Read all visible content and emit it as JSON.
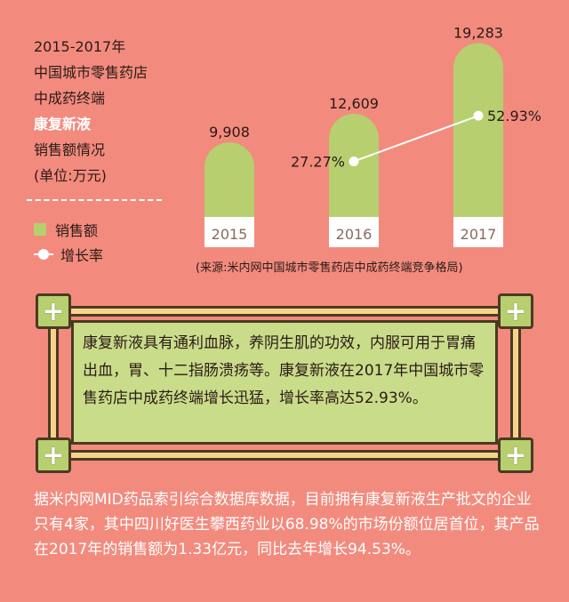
{
  "title_lines": [
    "2015-2017年",
    "中国城市零售药店",
    "中成药终端",
    "康复新液",
    "销售额情况",
    "(单位:万元)"
  ],
  "legend": {
    "sales": "销售额",
    "growth": "增长率"
  },
  "source": "(来源:米内网中国城市零售药店中成药终端竞争格局)",
  "colors": {
    "background": "#f28b7e",
    "bar": "#b7cf6e",
    "line": "#ffffff"
  },
  "chart_data": {
    "type": "bar",
    "categories": [
      "2015",
      "2016",
      "2017"
    ],
    "series": [
      {
        "name": "销售额",
        "values": [
          9908,
          12609,
          19283
        ],
        "labels": [
          "9,908",
          "12,609",
          "19,283"
        ]
      },
      {
        "name": "增长率",
        "type": "line",
        "values": [
          null,
          27.27,
          52.93
        ],
        "labels": [
          "",
          "27.27%",
          "52.93%"
        ]
      }
    ],
    "ylim": [
      0,
      20000
    ]
  },
  "panel_text": "康复新液具有通利血脉，养阴生肌的功效，内服可用于胃痛出血，胃、十二指肠溃疡等。康复新液在2017年中国城市零售药店中成药终端增长迅猛，增长率高达52.93%。",
  "body_text": "据米内网MID药品索引综合数据库数据，目前拥有康复新液生产批文的企业只有4家，其中四川好医生攀西药业以68.98%的市场份额位居首位，其产品在2017年的销售额为1.33亿元，同比去年增长94.53%。",
  "icons": {
    "corner": "plus-icon"
  }
}
